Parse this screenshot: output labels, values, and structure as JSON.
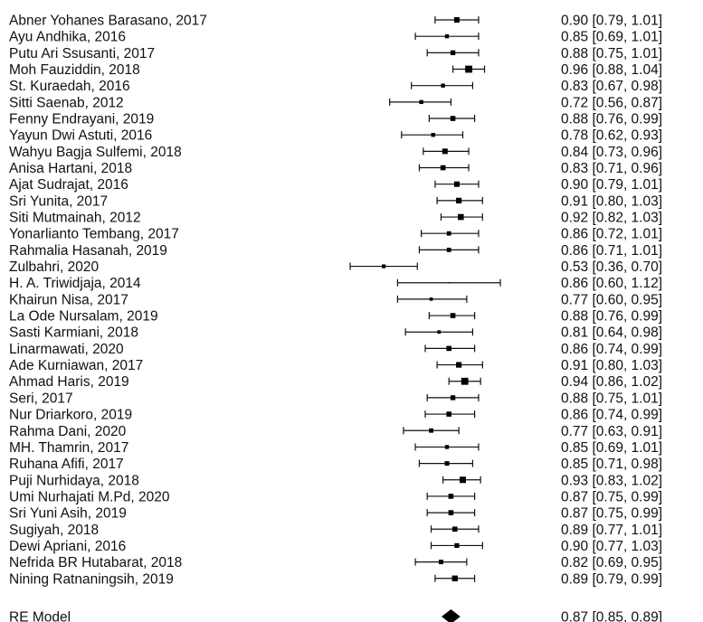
{
  "chart_data": {
    "type": "forest",
    "estimate_format": "{est} [{lo}, {hi}]",
    "studies": [
      {
        "label": "Abner Yohanes Barasano, 2017",
        "est": "0.90",
        "lo": "0.79",
        "hi": "1.01",
        "weight": 3.0
      },
      {
        "label": "Ayu Andhika, 2016",
        "est": "0.85",
        "lo": "0.69",
        "hi": "1.01",
        "weight": 2.2
      },
      {
        "label": "Putu Ari Ssusanti, 2017",
        "est": "0.88",
        "lo": "0.75",
        "hi": "1.01",
        "weight": 2.7
      },
      {
        "label": "Moh Fauziddin, 2018",
        "est": "0.96",
        "lo": "0.88",
        "hi": "1.04",
        "weight": 3.9
      },
      {
        "label": "St. Kuraedah, 2016",
        "est": "0.83",
        "lo": "0.67",
        "hi": "0.98",
        "weight": 2.2
      },
      {
        "label": "Sitti Saenab, 2012",
        "est": "0.72",
        "lo": "0.56",
        "hi": "0.87",
        "weight": 2.2
      },
      {
        "label": "Fenny Endrayani, 2019",
        "est": "0.88",
        "lo": "0.76",
        "hi": "0.99",
        "weight": 2.8
      },
      {
        "label": "Yayun Dwi Astuti, 2016",
        "est": "0.78",
        "lo": "0.62",
        "hi": "0.93",
        "weight": 2.2
      },
      {
        "label": "Wahyu Bagja Sulfemi, 2018",
        "est": "0.84",
        "lo": "0.73",
        "hi": "0.96",
        "weight": 3.0
      },
      {
        "label": "Anisa Hartani, 2018",
        "est": "0.83",
        "lo": "0.71",
        "hi": "0.96",
        "weight": 2.8
      },
      {
        "label": "Ajat Sudrajat, 2016",
        "est": "0.90",
        "lo": "0.79",
        "hi": "1.01",
        "weight": 3.0
      },
      {
        "label": "Sri Yunita, 2017",
        "est": "0.91",
        "lo": "0.80",
        "hi": "1.03",
        "weight": 3.1
      },
      {
        "label": "Siti Mutmainah, 2012",
        "est": "0.92",
        "lo": "0.82",
        "hi": "1.03",
        "weight": 3.3
      },
      {
        "label": "Yonarlianto Tembang, 2017",
        "est": "0.86",
        "lo": "0.72",
        "hi": "1.01",
        "weight": 2.4
      },
      {
        "label": "Rahmalia Hasanah, 2019",
        "est": "0.86",
        "lo": "0.71",
        "hi": "1.01",
        "weight": 2.4
      },
      {
        "label": "Zulbahri, 2020",
        "est": "0.53",
        "lo": "0.36",
        "hi": "0.70",
        "weight": 2.1
      },
      {
        "label": "H. A. Triwidjaja, 2014",
        "est": "0.86",
        "lo": "0.60",
        "hi": "1.12",
        "weight": 0.6
      },
      {
        "label": "Khairun Nisa, 2017",
        "est": "0.77",
        "lo": "0.60",
        "hi": "0.95",
        "weight": 1.8
      },
      {
        "label": "La Ode Nursalam, 2019",
        "est": "0.88",
        "lo": "0.76",
        "hi": "0.99",
        "weight": 2.8
      },
      {
        "label": "Sasti Karmiani, 2018",
        "est": "0.81",
        "lo": "0.64",
        "hi": "0.98",
        "weight": 1.9
      },
      {
        "label": "Linarmawati, 2020",
        "est": "0.86",
        "lo": "0.74",
        "hi": "0.99",
        "weight": 2.8
      },
      {
        "label": "Ade Kurniawan, 2017",
        "est": "0.91",
        "lo": "0.80",
        "hi": "1.03",
        "weight": 3.1
      },
      {
        "label": "Ahmad Haris, 2019",
        "est": "0.94",
        "lo": "0.86",
        "hi": "1.02",
        "weight": 3.9
      },
      {
        "label": "Seri, 2017",
        "est": "0.88",
        "lo": "0.75",
        "hi": "1.01",
        "weight": 2.7
      },
      {
        "label": "Nur Driarkoro, 2019",
        "est": "0.86",
        "lo": "0.74",
        "hi": "0.99",
        "weight": 2.8
      },
      {
        "label": "Rahma Dani, 2020",
        "est": "0.77",
        "lo": "0.63",
        "hi": "0.91",
        "weight": 2.4
      },
      {
        "label": "MH. Thamrin, 2017",
        "est": "0.85",
        "lo": "0.69",
        "hi": "1.01",
        "weight": 2.2
      },
      {
        "label": "Ruhana Afifi, 2017",
        "est": "0.85",
        "lo": "0.71",
        "hi": "0.98",
        "weight": 2.5
      },
      {
        "label": "Puji Nurhidaya, 2018",
        "est": "0.93",
        "lo": "0.83",
        "hi": "1.02",
        "weight": 3.5
      },
      {
        "label": "Umi Nurhajati M.Pd, 2020",
        "est": "0.87",
        "lo": "0.75",
        "hi": "0.99",
        "weight": 2.8
      },
      {
        "label": "Sri Yuni Asih, 2019",
        "est": "0.87",
        "lo": "0.75",
        "hi": "0.99",
        "weight": 2.8
      },
      {
        "label": "Sugiyah, 2018",
        "est": "0.89",
        "lo": "0.77",
        "hi": "1.01",
        "weight": 2.8
      },
      {
        "label": "Dewi Apriani, 2016",
        "est": "0.90",
        "lo": "0.77",
        "hi": "1.03",
        "weight": 2.6
      },
      {
        "label": "Nefrida BR Hutabarat, 2018",
        "est": "0.82",
        "lo": "0.69",
        "hi": "0.95",
        "weight": 2.5
      },
      {
        "label": "Nining Ratnaningsih, 2019",
        "est": "0.89",
        "lo": "0.79",
        "hi": "0.99",
        "weight": 3.2
      }
    ],
    "summary": {
      "label": "RE Model",
      "est": "0.87",
      "lo": "0.85",
      "hi": "0.89"
    },
    "xlim": [
      0.36,
      1.12
    ],
    "grid": false,
    "legend": "none"
  }
}
